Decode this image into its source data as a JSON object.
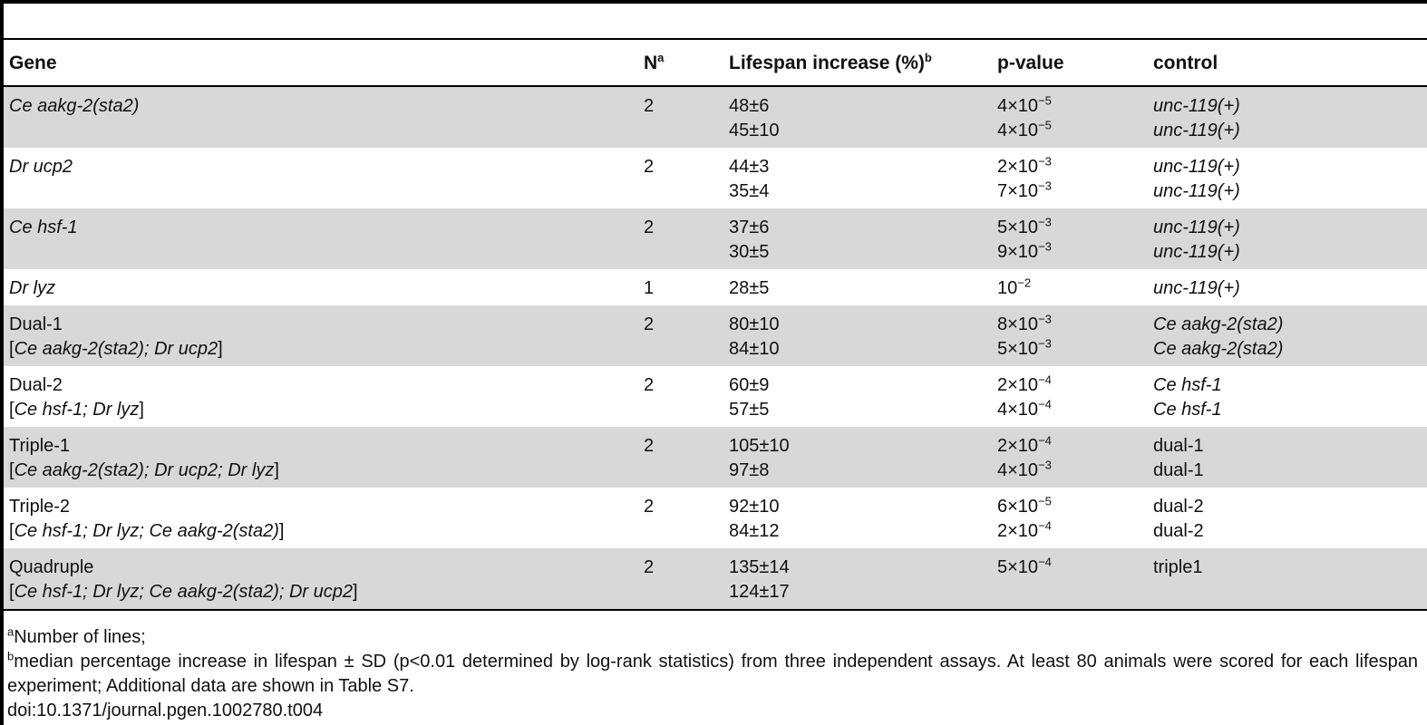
{
  "headers": {
    "gene": "Gene",
    "n": "N",
    "n_sup": "a",
    "lifespan": "Lifespan increase (%)",
    "lifespan_sup": "b",
    "pvalue": "p-value",
    "control": "control"
  },
  "rows": [
    {
      "gene_line1": "Ce aakg-2(sta2)",
      "gene_line2": "",
      "n": "2",
      "life1": "48±6",
      "life2": "45±10",
      "p1_base": "4×10",
      "p1_exp": "−5",
      "p2_base": "4×10",
      "p2_exp": "−5",
      "ctrl1": "unc-119(+)",
      "ctrl2": "unc-119(+)"
    },
    {
      "gene_line1": "Dr ucp2",
      "gene_line2": "",
      "n": "2",
      "life1": "44±3",
      "life2": "35±4",
      "p1_base": "2×10",
      "p1_exp": "−3",
      "p2_base": "7×10",
      "p2_exp": "−3",
      "ctrl1": "unc-119(+)",
      "ctrl2": "unc-119(+)"
    },
    {
      "gene_line1": "Ce hsf-1",
      "gene_line2": "",
      "n": "2",
      "life1": "37±6",
      "life2": "30±5",
      "p1_base": "5×10",
      "p1_exp": "−3",
      "p2_base": "9×10",
      "p2_exp": "−3",
      "ctrl1": "unc-119(+)",
      "ctrl2": "unc-119(+)"
    },
    {
      "gene_line1": "Dr lyz",
      "gene_line2": "",
      "n": "1",
      "life1": "28±5",
      "life2": "",
      "p1_base": "10",
      "p1_exp": "−2",
      "p2_base": "",
      "p2_exp": "",
      "ctrl1": "unc-119(+)",
      "ctrl2": ""
    },
    {
      "gene_line1": "Dual-1",
      "gene_line2": "Ce aakg-2(sta2); Dr ucp2",
      "n": "2",
      "life1": "80±10",
      "life2": "84±10",
      "p1_base": "8×10",
      "p1_exp": "−3",
      "p2_base": "5×10",
      "p2_exp": "−3",
      "ctrl1": "Ce aakg-2(sta2)",
      "ctrl2": "Ce aakg-2(sta2)"
    },
    {
      "gene_line1": "Dual-2",
      "gene_line2": "Ce hsf-1; Dr lyz",
      "n": "2",
      "life1": "60±9",
      "life2": "57±5",
      "p1_base": "2×10",
      "p1_exp": "−4",
      "p2_base": "4×10",
      "p2_exp": "−4",
      "ctrl1": "Ce hsf-1",
      "ctrl2": "Ce hsf-1"
    },
    {
      "gene_line1": "Triple-1",
      "gene_line2": "Ce aakg-2(sta2); Dr ucp2; Dr lyz",
      "n": "2",
      "life1": "105±10",
      "life2": "97±8",
      "p1_base": "2×10",
      "p1_exp": "−4",
      "p2_base": "4×10",
      "p2_exp": "−3",
      "ctrl1": "dual-1",
      "ctrl2": "dual-1"
    },
    {
      "gene_line1": "Triple-2",
      "gene_line2": "Ce hsf-1; Dr lyz; Ce aakg-2(sta2)",
      "n": "2",
      "life1": "92±10",
      "life2": "84±12",
      "p1_base": "6×10",
      "p1_exp": "−5",
      "p2_base": "2×10",
      "p2_exp": "−4",
      "ctrl1": "dual-2",
      "ctrl2": "dual-2"
    },
    {
      "gene_line1": "Quadruple",
      "gene_line2": "Ce hsf-1; Dr lyz; Ce aakg-2(sta2); Dr ucp2",
      "n": "2",
      "life1": "135±14",
      "life2": "124±17",
      "p1_base": "5×10",
      "p1_exp": "−4",
      "p2_base": "",
      "p2_exp": "",
      "ctrl1": "triple1",
      "ctrl2": ""
    }
  ],
  "footnotes": {
    "a_mark": "a",
    "a_text": "Number of lines;",
    "b_mark": "b",
    "b_text": "median percentage increase in lifespan ± SD (p<0.01 determined by log-rank statistics) from three independent assays. At least 80 animals were scored for each lifespan experiment; Additional data are shown in Table S7.",
    "doi": "doi:10.1371/journal.pgen.1002780.t004"
  },
  "colors": {
    "shade": "#d8d8d8",
    "rule": "#000000"
  }
}
